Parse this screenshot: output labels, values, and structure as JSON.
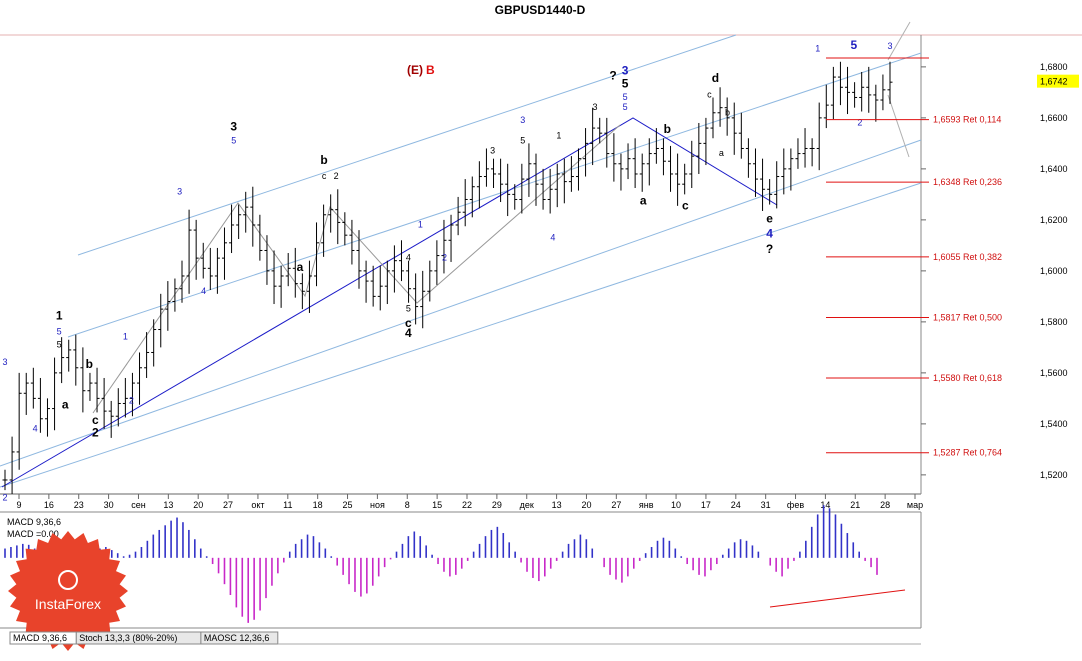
{
  "colors": {
    "grid_frame": "#888888",
    "channel": "#8fb8e0",
    "trend": "#1c1cc8",
    "ret_line": "#e01010",
    "ret_text": "#d01010",
    "bars": "#000000",
    "macd_pos": "#3232c8",
    "macd_neg": "#c828c8",
    "price_badge": "#ffff00",
    "logo_bg": "#e8432b"
  },
  "chart_data": {
    "type": "ohlc",
    "title": "GBPUSD1440-D",
    "annotation_eb": {
      "e": "(E)",
      "b": "B"
    },
    "y_ticks": [
      "1,6800",
      "1,6600",
      "1,6400",
      "1,6200",
      "1,6000",
      "1,5800",
      "1,5600",
      "1,5400",
      "1,5200"
    ],
    "y_values": [
      1.68,
      1.66,
      1.64,
      1.62,
      1.6,
      1.58,
      1.56,
      1.54,
      1.52
    ],
    "ylim": [
      1.5125,
      1.6925
    ],
    "current_price": "1,6742",
    "x_ticks": [
      "9",
      "16",
      "23",
      "30",
      "сен",
      "13",
      "20",
      "27",
      "окт",
      "11",
      "18",
      "25",
      "ноя",
      "8",
      "15",
      "22",
      "29",
      "дек",
      "13",
      "20",
      "27",
      "янв",
      "10",
      "17",
      "24",
      "31",
      "фев",
      "14",
      "21",
      "28",
      "мар"
    ],
    "closes": [
      1.518,
      1.529,
      1.552,
      1.556,
      1.55,
      1.542,
      1.546,
      1.56,
      1.566,
      1.569,
      1.562,
      1.553,
      1.556,
      1.55,
      1.545,
      1.543,
      1.548,
      1.55,
      1.556,
      1.562,
      1.568,
      1.577,
      1.585,
      1.588,
      1.593,
      1.598,
      1.616,
      1.605,
      1.601,
      1.598,
      1.605,
      1.611,
      1.618,
      1.622,
      1.625,
      1.618,
      1.608,
      1.6,
      1.594,
      1.598,
      1.601,
      1.595,
      1.592,
      1.598,
      1.611,
      1.622,
      1.624,
      1.619,
      1.614,
      1.608,
      1.6,
      1.596,
      1.59,
      1.594,
      1.6,
      1.604,
      1.6,
      1.593,
      1.586,
      1.592,
      1.6,
      1.606,
      1.612,
      1.618,
      1.623,
      1.628,
      1.633,
      1.637,
      1.64,
      1.638,
      1.634,
      1.63,
      1.628,
      1.636,
      1.642,
      1.634,
      1.628,
      1.632,
      1.638,
      1.635,
      1.637,
      1.644,
      1.65,
      1.656,
      1.654,
      1.646,
      1.642,
      1.64,
      1.644,
      1.638,
      1.642,
      1.646,
      1.648,
      1.643,
      1.638,
      1.634,
      1.638,
      1.645,
      1.65,
      1.656,
      1.662,
      1.664,
      1.66,
      1.654,
      1.648,
      1.642,
      1.636,
      1.632,
      1.63,
      1.637,
      1.64,
      1.644,
      1.646,
      1.648,
      1.648,
      1.66,
      1.665,
      1.676,
      1.672,
      1.67,
      1.668,
      1.672,
      1.669,
      1.667,
      1.671,
      1.674
    ],
    "fib_levels": [
      {
        "price": 1.6593,
        "label": "1,6593 Ret 0,114"
      },
      {
        "price": 1.6348,
        "label": "1,6348 Ret 0,236"
      },
      {
        "price": 1.6055,
        "label": "1,6055 Ret 0,382"
      },
      {
        "price": 1.5817,
        "label": "1,5817 Ret 0,500"
      },
      {
        "price": 1.558,
        "label": "1,5580 Ret 0,618"
      },
      {
        "price": 1.5287,
        "label": "1,5287 Ret 0,764"
      }
    ],
    "wave_labels": [
      {
        "t": "3",
        "c": "#2020c0",
        "i": 0,
        "p": 1.563
      },
      {
        "t": "4",
        "c": "#2020c0",
        "i": 5,
        "p": 1.537
      },
      {
        "t": "2",
        "c": "#2020c0",
        "i": 0,
        "p": 1.51
      },
      {
        "t": "1",
        "c": "#000",
        "i": 9,
        "p": 1.581,
        "b": true
      },
      {
        "t": "5",
        "c": "#2020c0",
        "i": 9,
        "p": 1.575
      },
      {
        "t": "5",
        "c": "#000",
        "i": 9,
        "p": 1.57
      },
      {
        "t": "b",
        "c": "#000",
        "i": 14,
        "p": 1.562,
        "b": true
      },
      {
        "t": "a",
        "c": "#000",
        "i": 10,
        "p": 1.546,
        "b": true
      },
      {
        "t": "c",
        "c": "#000",
        "i": 15,
        "p": 1.54,
        "b": true
      },
      {
        "t": "2",
        "c": "#000",
        "i": 15,
        "p": 1.535,
        "b": true
      },
      {
        "t": "1",
        "c": "#2020c0",
        "i": 20,
        "p": 1.573
      },
      {
        "t": "2",
        "c": "#2020c0",
        "i": 21,
        "p": 1.548
      },
      {
        "t": "3",
        "c": "#2020c0",
        "i": 29,
        "p": 1.63
      },
      {
        "t": "4",
        "c": "#2020c0",
        "i": 33,
        "p": 1.591
      },
      {
        "t": "3",
        "c": "#000",
        "i": 38,
        "p": 1.655,
        "b": true
      },
      {
        "t": "5",
        "c": "#2020c0",
        "i": 38,
        "p": 1.65
      },
      {
        "t": "b",
        "c": "#000",
        "i": 53,
        "p": 1.642,
        "b": true
      },
      {
        "t": "c",
        "c": "#000",
        "i": 53,
        "p": 1.636
      },
      {
        "t": "2",
        "c": "#000",
        "i": 55,
        "p": 1.636
      },
      {
        "t": "a",
        "c": "#000",
        "i": 49,
        "p": 1.6,
        "b": true
      },
      {
        "t": "4",
        "c": "#000",
        "i": 67,
        "p": 1.604
      },
      {
        "t": "5",
        "c": "#000",
        "i": 67,
        "p": 1.584
      },
      {
        "t": "c",
        "c": "#000",
        "i": 67,
        "p": 1.578,
        "b": true
      },
      {
        "t": "4",
        "c": "#000",
        "i": 67,
        "p": 1.574,
        "b": true
      },
      {
        "t": "1",
        "c": "#2020c0",
        "i": 69,
        "p": 1.617
      },
      {
        "t": "2",
        "c": "#2020c0",
        "i": 73,
        "p": 1.604
      },
      {
        "t": "3",
        "c": "#000",
        "i": 81,
        "p": 1.646
      },
      {
        "t": "3",
        "c": "#2020c0",
        "i": 86,
        "p": 1.658
      },
      {
        "t": "5",
        "c": "#000",
        "i": 86,
        "p": 1.65
      },
      {
        "t": "1",
        "c": "#000",
        "i": 92,
        "p": 1.652
      },
      {
        "t": "4",
        "c": "#2020c0",
        "i": 91,
        "p": 1.612
      },
      {
        "t": "3",
        "c": "#000",
        "i": 98,
        "p": 1.663
      },
      {
        "t": "?",
        "c": "#000",
        "i": 101,
        "p": 1.675,
        "b": true
      },
      {
        "t": "3",
        "c": "#2020c0",
        "i": 103,
        "p": 1.677,
        "b": true
      },
      {
        "t": "5",
        "c": "#000",
        "i": 103,
        "p": 1.672,
        "b": true
      },
      {
        "t": "5",
        "c": "#2020c0",
        "i": 103,
        "p": 1.667
      },
      {
        "t": "5",
        "c": "#2020c0",
        "i": 103,
        "p": 1.663
      },
      {
        "t": "b",
        "c": "#000",
        "i": 110,
        "p": 1.654,
        "b": true
      },
      {
        "t": "a",
        "c": "#000",
        "i": 106,
        "p": 1.626,
        "b": true
      },
      {
        "t": "c",
        "c": "#000",
        "i": 113,
        "p": 1.624,
        "b": true
      },
      {
        "t": "d",
        "c": "#000",
        "i": 118,
        "p": 1.674,
        "b": true
      },
      {
        "t": "c",
        "c": "#000",
        "i": 117,
        "p": 1.668
      },
      {
        "t": "b",
        "c": "#000",
        "i": 120,
        "p": 1.661
      },
      {
        "t": "a",
        "c": "#000",
        "i": 119,
        "p": 1.645
      },
      {
        "t": "e",
        "c": "#000",
        "i": 127,
        "p": 1.619,
        "b": true
      },
      {
        "t": "4",
        "c": "#2020c0",
        "i": 127,
        "p": 1.613,
        "b": true
      },
      {
        "t": "?",
        "c": "#000",
        "i": 127,
        "p": 1.607,
        "b": true
      },
      {
        "t": "1",
        "c": "#2020c0",
        "i": 135,
        "p": 1.686
      },
      {
        "t": "5",
        "c": "#2020c0",
        "i": 141,
        "p": 1.687,
        "b": true
      },
      {
        "t": "3",
        "c": "#2020c0",
        "i": 147,
        "p": 1.687
      },
      {
        "t": "2",
        "c": "#2020c0",
        "i": 142,
        "p": 1.657
      }
    ]
  },
  "indicator": {
    "label1": "MACD 9,36,6",
    "label2": "MACD =0.00",
    "values": [
      0.3,
      0.35,
      0.4,
      0.45,
      0.42,
      0.3,
      0.1,
      -0.1,
      -0.2,
      -0.3,
      -0.35,
      -0.3,
      -0.2,
      -0.1,
      0.05,
      0.2,
      0.3,
      0.35,
      0.25,
      0.15,
      0.05,
      0.1,
      0.2,
      0.35,
      0.55,
      0.75,
      0.9,
      1.05,
      1.2,
      1.3,
      1.15,
      0.9,
      0.6,
      0.3,
      0.05,
      -0.2,
      -0.5,
      -0.85,
      -1.2,
      -1.6,
      -1.9,
      -2.1,
      -2.0,
      -1.7,
      -1.3,
      -0.9,
      -0.5,
      -0.15,
      0.2,
      0.45,
      0.6,
      0.75,
      0.7,
      0.5,
      0.3,
      0.05,
      -0.25,
      -0.55,
      -0.85,
      -1.1,
      -1.25,
      -1.15,
      -0.9,
      -0.6,
      -0.3,
      -0.05,
      0.2,
      0.45,
      0.7,
      0.85,
      0.7,
      0.4,
      0.1,
      -0.2,
      -0.45,
      -0.6,
      -0.55,
      -0.35,
      -0.1,
      0.2,
      0.45,
      0.7,
      0.9,
      1.0,
      0.8,
      0.5,
      0.2,
      -0.15,
      -0.45,
      -0.65,
      -0.75,
      -0.6,
      -0.35,
      -0.1,
      0.2,
      0.45,
      0.6,
      0.75,
      0.6,
      0.3,
      0.0,
      -0.3,
      -0.55,
      -0.7,
      -0.8,
      -0.6,
      -0.35,
      -0.1,
      0.15,
      0.35,
      0.55,
      0.65,
      0.55,
      0.3,
      0.05,
      -0.2,
      -0.4,
      -0.55,
      -0.6,
      -0.4,
      -0.2,
      0.1,
      0.3,
      0.5,
      0.6,
      0.55,
      0.4,
      0.2,
      0.0,
      -0.25,
      -0.45,
      -0.6,
      -0.35,
      -0.1,
      0.2,
      0.55,
      1.0,
      1.4,
      1.7,
      1.6,
      1.4,
      1.1,
      0.8,
      0.5,
      0.2,
      -0.1,
      -0.3,
      -0.55
    ],
    "ylim": [
      -2.2,
      1.35
    ]
  },
  "logo": {
    "text": "InstaForex"
  },
  "tabs": [
    {
      "label": "MACD 9,36,6"
    },
    {
      "label": "Stoch 13,3,3 (80%-20%)"
    },
    {
      "label": "MAOSC 12,36,6"
    }
  ]
}
